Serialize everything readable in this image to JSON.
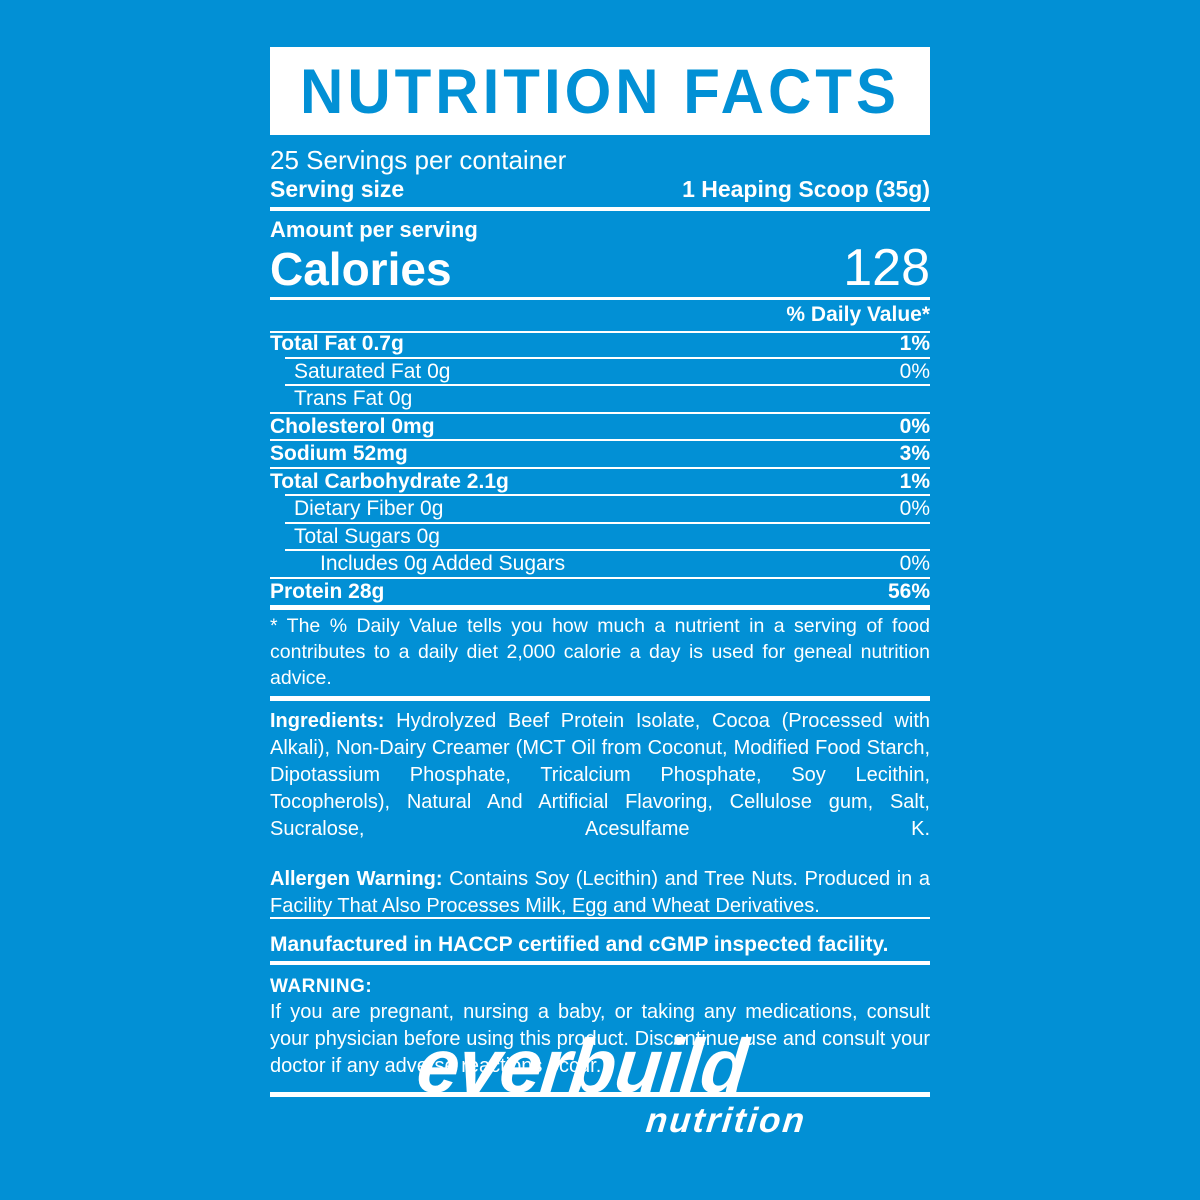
{
  "colors": {
    "background": "#0290D5",
    "accent": "#0290D5",
    "text": "#FFFFFF"
  },
  "label": {
    "title": "NUTRITION FACTS",
    "servings_per_container": "25 Servings per container",
    "serving_size_label": "Serving size",
    "serving_size_value": "1 Heaping Scoop (35g)",
    "amount_per_serving": "Amount per serving",
    "calories_label": "Calories",
    "calories_value": "128",
    "daily_value_header": "% Daily Value*",
    "rows": [
      {
        "label": "Total Fat 0.7g",
        "value": "1%",
        "indent": 0
      },
      {
        "label": "Saturated Fat 0g",
        "value": "0%",
        "indent": 1
      },
      {
        "label": "Trans Fat 0g",
        "value": "",
        "indent": 1
      },
      {
        "label": "Cholesterol 0mg",
        "value": "0%",
        "indent": 0
      },
      {
        "label": "Sodium 52mg",
        "value": "3%",
        "indent": 0
      },
      {
        "label": "Total Carbohydrate 2.1g",
        "value": "1%",
        "indent": 0
      },
      {
        "label": "Dietary Fiber 0g",
        "value": "0%",
        "indent": 1
      },
      {
        "label": "Total Sugars 0g",
        "value": "",
        "indent": 1
      },
      {
        "label": "Includes 0g Added Sugars",
        "value": "0%",
        "indent": 2
      },
      {
        "label": "Protein 28g",
        "value": "56%",
        "indent": 0
      }
    ],
    "footnote": "* The % Daily Value tells you how much a nutrient in a serving of food contributes to a daily diet 2,000 calorie a day is used for geneal nutrition advice.",
    "ingredients_label": "Ingredients:",
    "ingredients_text": "Hydrolyzed Beef Protein Isolate, Cocoa (Processed with Alkali), Non-Dairy Creamer (MCT Oil from Coconut, Modified Food Starch, Dipotassium Phosphate, Tricalcium Phosphate, Soy Lecithin, Tocopherols), Natural And Artificial Flavoring, Cellulose gum, Salt, Sucralose, Acesulfame K.",
    "allergen_label": "Allergen Warning:",
    "allergen_text": "Contains Soy (Lecithin) and Tree Nuts. Produced in a Facility That Also Processes Milk, Egg and Wheat Derivatives.",
    "manufactured": "Manufactured in HACCP certified and cGMP inspected facility.",
    "warning_label": "WARNING:",
    "warning_text": "If you are pregnant, nursing a baby, or taking any medications, consult your physician before using this product. Discontinue use and consult your doctor if any adverse reactions occur."
  },
  "brand": {
    "name": "everbuild",
    "tagline": "nutrition"
  }
}
